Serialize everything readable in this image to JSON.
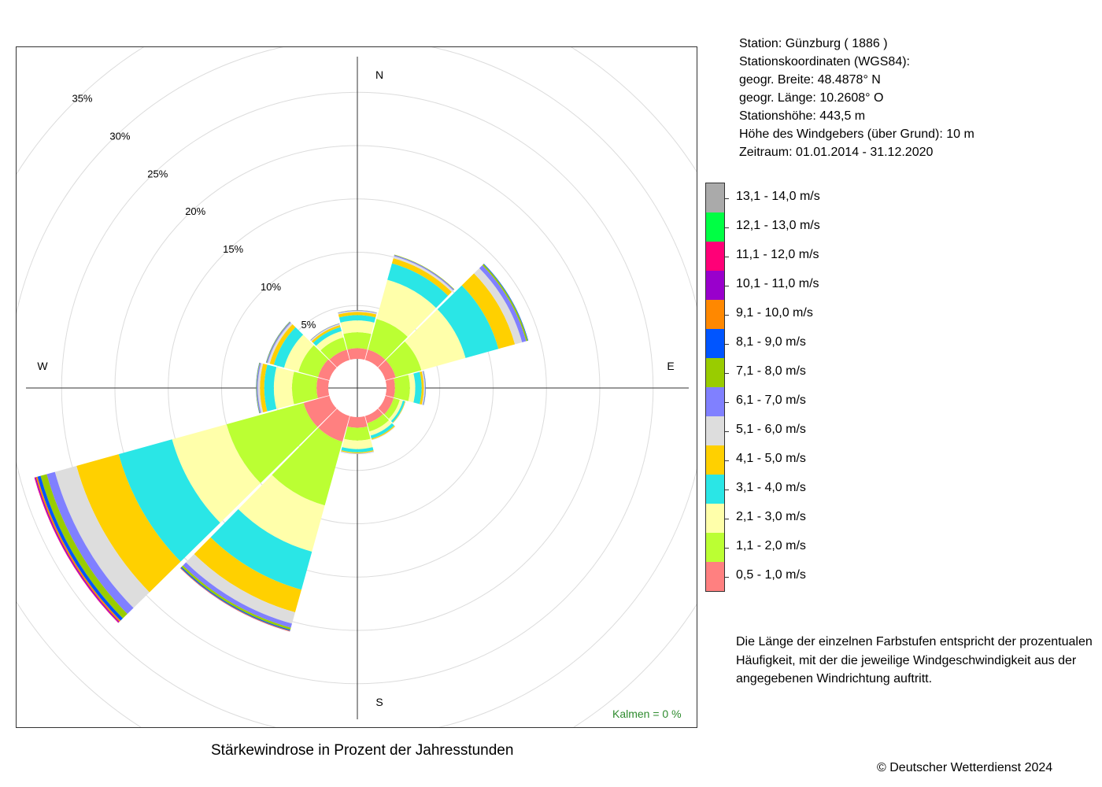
{
  "station": {
    "line1": "Station:  Günzburg  ( 1886 )",
    "line2": "Stationskoordinaten (WGS84):",
    "line3": "geogr. Breite: 48.4878° N",
    "line4": "geogr. Länge: 10.2608° O",
    "line5": "Stationshöhe: 443,5 m",
    "line6": "Höhe des Windgebers (über Grund): 10 m",
    "line7": "Zeitraum: 01.01.2014 - 31.12.2020"
  },
  "note": "Die Länge der einzelnen Farbstufen entspricht der prozentualen Häufigkeit, mit der die jeweilige Windgeschwindigkeit aus der angegebenen Windrichtung auftritt.",
  "caption": "Stärkewindrose in Prozent der Jahresstunden",
  "copyright": "© Deutscher Wetterdienst  2024",
  "kalmen": "Kalmen  =  0 %",
  "chart_data": {
    "type": "polar-stacked-bar",
    "title": "Stärkewindrose in Prozent der Jahresstunden",
    "radial_unit": "%",
    "radial_max": 35,
    "radial_ticks": [
      5,
      10,
      15,
      20,
      25,
      30,
      35
    ],
    "radial_tick_labels": [
      "5%",
      "10%",
      "15%",
      "20%",
      "25%",
      "30%",
      "35%"
    ],
    "directions_deg": [
      0,
      30,
      60,
      90,
      120,
      150,
      180,
      210,
      240,
      270,
      300,
      330
    ],
    "compass_labels": {
      "N": "N",
      "E": "E",
      "S": "S",
      "W": "W"
    },
    "calm_pct": 0,
    "speed_classes": [
      {
        "label": "0,5 - 1,0 m/s",
        "color": "#FF8080"
      },
      {
        "label": "1,1 - 2,0 m/s",
        "color": "#BBFF33"
      },
      {
        "label": "2,1 - 3,0 m/s",
        "color": "#FFFFAA"
      },
      {
        "label": "3,1 - 4,0 m/s",
        "color": "#2AE6E6"
      },
      {
        "label": "4,1 - 5,0 m/s",
        "color": "#FFD000"
      },
      {
        "label": "5,1 - 6,0 m/s",
        "color": "#DDDDDD"
      },
      {
        "label": "6,1 - 7,0 m/s",
        "color": "#8080FF"
      },
      {
        "label": "7,1 - 8,0 m/s",
        "color": "#99CC00"
      },
      {
        "label": "8,1 - 9,0 m/s",
        "color": "#0055FF"
      },
      {
        "label": "9,1 - 10,0 m/s",
        "color": "#FF8800"
      },
      {
        "label": "10,1 - 11,0 m/s",
        "color": "#9900CC"
      },
      {
        "label": "11,1 - 12,0 m/s",
        "color": "#FF0077"
      },
      {
        "label": "12,1 - 13,0 m/s",
        "color": "#00FF44"
      },
      {
        "label": "13,1 - 14,0 m/s",
        "color": "#AAAAAA"
      }
    ],
    "series": [
      {
        "direction": 0,
        "values": [
          1.0,
          1.5,
          1.1,
          0.5,
          0.3,
          0.1,
          0.05,
          0.02,
          0,
          0,
          0,
          0,
          0,
          0
        ]
      },
      {
        "direction": 30,
        "values": [
          1.0,
          3.0,
          3.8,
          1.6,
          0.5,
          0.2,
          0.1,
          0.05,
          0,
          0,
          0,
          0,
          0,
          0
        ]
      },
      {
        "direction": 60,
        "values": [
          1.0,
          2.5,
          4.3,
          3.2,
          1.6,
          0.7,
          0.4,
          0.15,
          0.05,
          0,
          0,
          0,
          0,
          0
        ]
      },
      {
        "direction": 90,
        "values": [
          0.8,
          1.4,
          0.5,
          0.6,
          0.2,
          0.1,
          0.05,
          0.02,
          0.02,
          0,
          0,
          0,
          0,
          0
        ]
      },
      {
        "direction": 120,
        "values": [
          0.8,
          0.6,
          0.3,
          0.2,
          0.05,
          0.02,
          0,
          0,
          0,
          0,
          0,
          0,
          0,
          0
        ]
      },
      {
        "direction": 150,
        "values": [
          0.7,
          0.8,
          0.4,
          0.3,
          0.1,
          0.05,
          0,
          0,
          0,
          0,
          0,
          0,
          0,
          0
        ]
      },
      {
        "direction": 180,
        "values": [
          1.0,
          1.2,
          0.8,
          0.3,
          0.1,
          0.05,
          0.02,
          0,
          0,
          0,
          0,
          0,
          0,
          0
        ]
      },
      {
        "direction": 210,
        "values": [
          2.5,
          6.2,
          4.5,
          3.7,
          2.2,
          1.1,
          0.4,
          0.2,
          0.1,
          0.05,
          0.02,
          0,
          0,
          0
        ]
      },
      {
        "direction": 240,
        "values": [
          2.5,
          7.5,
          5.3,
          5.2,
          4.1,
          2.1,
          0.8,
          0.6,
          0.3,
          0.15,
          0.1,
          0.05,
          0,
          0
        ]
      },
      {
        "direction": 270,
        "values": [
          1.1,
          2.3,
          1.7,
          0.9,
          0.4,
          0.2,
          0.1,
          0.05,
          0.02,
          0,
          0,
          0,
          0,
          0
        ]
      },
      {
        "direction": 300,
        "values": [
          1.1,
          1.9,
          1.4,
          1.0,
          0.4,
          0.2,
          0.1,
          0.05,
          0.02,
          0,
          0,
          0,
          0,
          0
        ]
      },
      {
        "direction": 330,
        "values": [
          1.0,
          1.2,
          0.6,
          0.4,
          0.2,
          0.1,
          0.05,
          0.02,
          0,
          0,
          0,
          0,
          0,
          0
        ]
      }
    ]
  }
}
